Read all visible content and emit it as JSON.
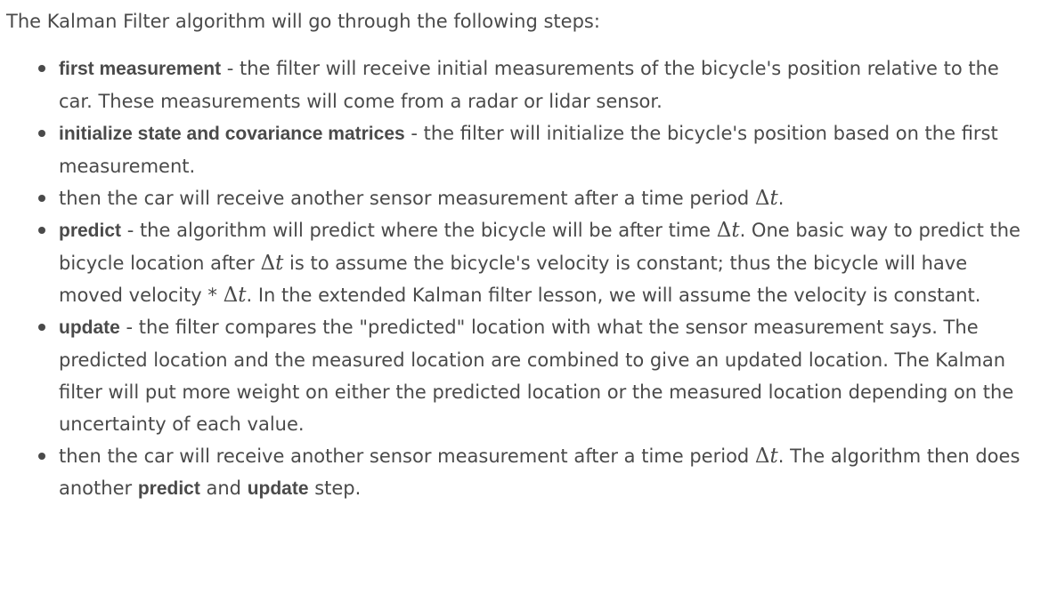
{
  "intro": "The Kalman Filter algorithm will go through the following steps:",
  "math": {
    "delta_t": "Δ",
    "t": "t"
  },
  "steps": {
    "s1": {
      "term": "first measurement",
      "text": " - the filter will receive initial measurements of the bicycle's position relative to the car. These measurements will come from a radar or lidar sensor."
    },
    "s2": {
      "term": "initialize state and covariance matrices",
      "text": " - the filter will initialize the bicycle's position based on the first measurement."
    },
    "s3": {
      "text_a": "then the car will receive another sensor measurement after a time period ",
      "text_b": "."
    },
    "s4": {
      "term": "predict",
      "text_a": " - the algorithm will predict where the bicycle will be after time ",
      "text_b": ". One basic way to predict the bicycle location after ",
      "text_c": " is to assume the bicycle's velocity is constant; thus the bicycle will have moved velocity * ",
      "text_d": ". In the extended Kalman filter lesson, we will assume the velocity is constant."
    },
    "s5": {
      "term": "update",
      "text": " - the filter compares the \"predicted\" location with what the sensor measurement says. The predicted location and the measured location are combined to give an updated location. The Kalman filter will put more weight on either the predicted location or the measured location depending on the uncertainty of each value."
    },
    "s6": {
      "text_a": "then the car will receive another sensor measurement after a time period ",
      "text_b": ". The algorithm then does another ",
      "term_predict": "predict",
      "text_c": " and ",
      "term_update": "update",
      "text_d": " step."
    }
  }
}
